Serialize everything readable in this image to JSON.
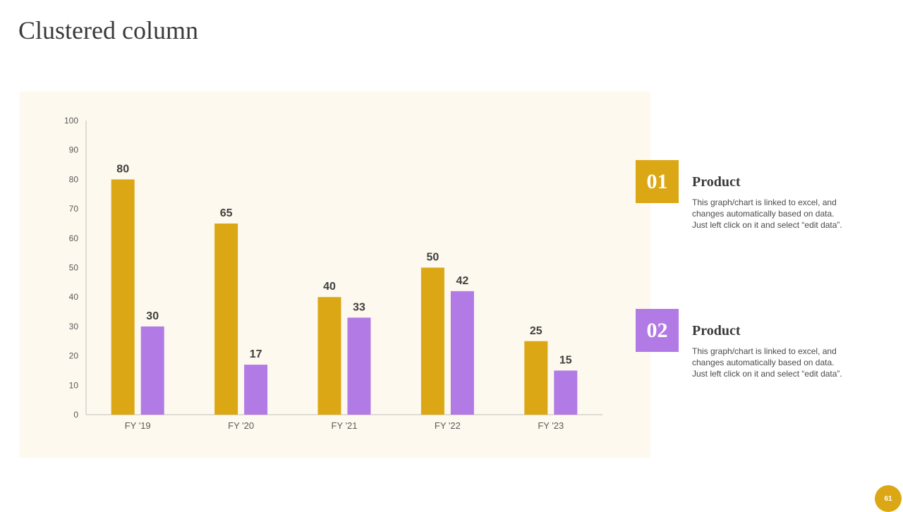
{
  "title": "Clustered column",
  "colors": {
    "series1": "#dca715",
    "series2": "#b27ae5",
    "panel": "#fdf9ee"
  },
  "legend": [
    {
      "number": "01",
      "title": "Product",
      "desc_lines": [
        "This graph/chart is linked to excel, and",
        "changes automatically based on data.",
        "Just left click on it and select “edit data”."
      ]
    },
    {
      "number": "02",
      "title": "Product",
      "desc_lines": [
        "This graph/chart is linked to excel, and",
        "changes automatically based on data.",
        "Just left click on it and select “edit data”."
      ]
    }
  ],
  "page_number": "61",
  "chart_data": {
    "type": "bar",
    "title": "",
    "xlabel": "",
    "ylabel": "",
    "categories": [
      "FY '19",
      "FY '20",
      "FY '21",
      "FY '22",
      "FY '23"
    ],
    "series": [
      {
        "name": "Product 01",
        "values": [
          80,
          65,
          40,
          50,
          25
        ]
      },
      {
        "name": "Product 02",
        "values": [
          30,
          17,
          33,
          42,
          15
        ]
      }
    ],
    "ylim": [
      0,
      100
    ],
    "yticks": [
      0,
      10,
      20,
      30,
      40,
      50,
      60,
      70,
      80,
      90,
      100
    ],
    "grid": false,
    "data_labels": true
  }
}
